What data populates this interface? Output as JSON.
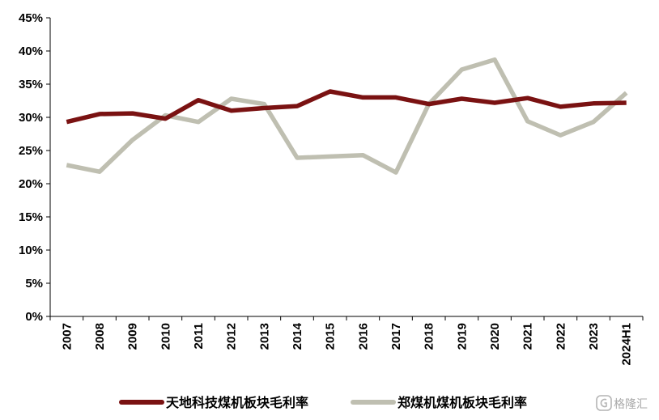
{
  "chart_data": {
    "type": "line",
    "x": [
      "2007",
      "2008",
      "2009",
      "2010",
      "2011",
      "2012",
      "2013",
      "2014",
      "2015",
      "2016",
      "2017",
      "2018",
      "2019",
      "2020",
      "2021",
      "2022",
      "2023",
      "2024H1"
    ],
    "ylim": [
      0,
      45
    ],
    "yticks": [
      "0%",
      "5%",
      "10%",
      "15%",
      "20%",
      "25%",
      "30%",
      "35%",
      "40%",
      "45%"
    ],
    "ytick_values": [
      0,
      5,
      10,
      15,
      20,
      25,
      30,
      35,
      40,
      45
    ],
    "grid": false,
    "legend_position": "bottom",
    "series": [
      {
        "name": "天地科技煤机板块毛利率",
        "color": "#7a1212",
        "values": [
          29.3,
          30.5,
          30.6,
          29.8,
          32.6,
          31.0,
          31.4,
          31.7,
          33.9,
          33.0,
          33.0,
          32.0,
          32.8,
          32.2,
          32.9,
          31.6,
          32.1,
          32.2
        ]
      },
      {
        "name": "郑煤机煤机板块毛利率",
        "color": "#bfbfb1",
        "values": [
          22.8,
          21.8,
          26.6,
          30.3,
          29.3,
          32.8,
          32.0,
          23.9,
          24.1,
          24.3,
          21.7,
          32.0,
          37.2,
          38.7,
          29.4,
          27.3,
          29.3,
          33.7
        ]
      }
    ]
  },
  "watermark": {
    "text": "格隆汇",
    "icon": "g-logo-icon"
  }
}
